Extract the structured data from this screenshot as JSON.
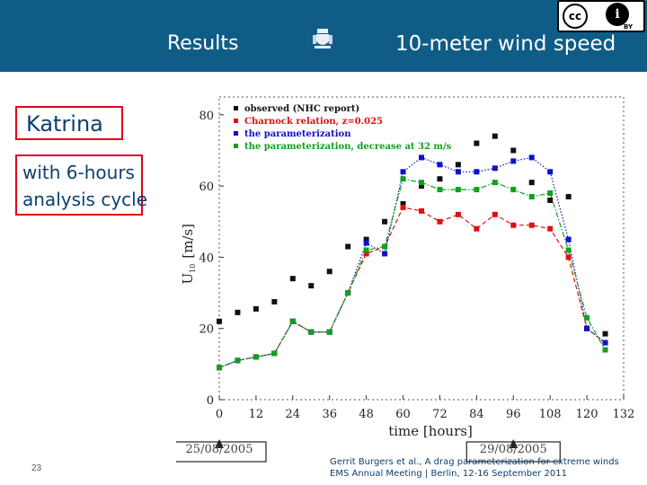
{
  "header": {
    "section": "Results",
    "title": "10-meter wind speed"
  },
  "sidebar": {
    "storm_name": "Katrina",
    "cycle_line1": "with 6-hours",
    "cycle_line2": "analysis cycle"
  },
  "footer": {
    "slide_number": "23",
    "credit_line1": "Gerrit Burgers et al., A drag parameterization for extreme winds",
    "credit_line2": "EMS Annual Meeting | Berlin, 12-16 September 2011"
  },
  "colors": {
    "header_bg": "#0f5d87",
    "box_border": "#e0001a",
    "text_blue": "#0f3f6e"
  },
  "icons": [
    "crest-icon",
    "cc-by-license-icon"
  ],
  "chart_data": {
    "type": "line",
    "xlabel": "time [hours]",
    "ylabel": "U",
    "ylabel_sub": "10",
    "ylabel_unit": "[m/s]",
    "xlim": [
      0,
      132
    ],
    "ylim": [
      0,
      85
    ],
    "xticks": [
      0,
      12,
      24,
      36,
      48,
      60,
      72,
      84,
      96,
      108,
      120,
      132
    ],
    "yticks": [
      0,
      20,
      40,
      60,
      80
    ],
    "legend_position": "top-left",
    "date_annotations": [
      {
        "label": "25/08/2005",
        "x": 0
      },
      {
        "label": "29/08/2005",
        "x": 96
      }
    ],
    "series": [
      {
        "name": "observed (NHC report)",
        "color": "#111111",
        "style": "markers",
        "points": [
          [
            0,
            22
          ],
          [
            6,
            24.5
          ],
          [
            12,
            25.5
          ],
          [
            18,
            27.5
          ],
          [
            24,
            34
          ],
          [
            30,
            32
          ],
          [
            36,
            36
          ],
          [
            42,
            43
          ],
          [
            48,
            45
          ],
          [
            54,
            50
          ],
          [
            60,
            55
          ],
          [
            66,
            60
          ],
          [
            72,
            62
          ],
          [
            78,
            66
          ],
          [
            84,
            72
          ],
          [
            90,
            74
          ],
          [
            96,
            70
          ],
          [
            102,
            61
          ],
          [
            108,
            56
          ],
          [
            114,
            57
          ],
          [
            120,
            20
          ],
          [
            126,
            18.5
          ]
        ]
      },
      {
        "name": "Charnock relation, z=0.025",
        "color": "#e01010",
        "style": "dashed-markers",
        "points": [
          [
            0,
            9
          ],
          [
            6,
            11
          ],
          [
            12,
            12
          ],
          [
            18,
            13
          ],
          [
            24,
            22
          ],
          [
            30,
            19
          ],
          [
            36,
            19
          ],
          [
            42,
            30
          ],
          [
            48,
            41
          ],
          [
            54,
            43
          ],
          [
            60,
            54
          ],
          [
            66,
            53
          ],
          [
            72,
            50
          ],
          [
            78,
            52
          ],
          [
            84,
            48
          ],
          [
            90,
            52
          ],
          [
            96,
            49
          ],
          [
            102,
            49
          ],
          [
            108,
            48
          ],
          [
            114,
            40
          ],
          [
            120,
            20
          ],
          [
            126,
            16
          ]
        ]
      },
      {
        "name": "the parameterization",
        "color": "#1010cc",
        "style": "dotted-markers",
        "points": [
          [
            0,
            9
          ],
          [
            6,
            11
          ],
          [
            12,
            12
          ],
          [
            18,
            13
          ],
          [
            24,
            22
          ],
          [
            30,
            19
          ],
          [
            36,
            19
          ],
          [
            42,
            30
          ],
          [
            48,
            44
          ],
          [
            54,
            41
          ],
          [
            60,
            64
          ],
          [
            66,
            68
          ],
          [
            72,
            66
          ],
          [
            78,
            64
          ],
          [
            84,
            64
          ],
          [
            90,
            65
          ],
          [
            96,
            67
          ],
          [
            102,
            68
          ],
          [
            108,
            64
          ],
          [
            114,
            45
          ],
          [
            120,
            20
          ],
          [
            126,
            16
          ]
        ]
      },
      {
        "name": "the parameterization, decrease at 32 m/s",
        "color": "#10a020",
        "style": "dashdot-markers",
        "points": [
          [
            0,
            9
          ],
          [
            6,
            11
          ],
          [
            12,
            12
          ],
          [
            18,
            13
          ],
          [
            24,
            22
          ],
          [
            30,
            19
          ],
          [
            36,
            19
          ],
          [
            42,
            30
          ],
          [
            48,
            42
          ],
          [
            54,
            43
          ],
          [
            60,
            62
          ],
          [
            66,
            61
          ],
          [
            72,
            59
          ],
          [
            78,
            59
          ],
          [
            84,
            59
          ],
          [
            90,
            61
          ],
          [
            96,
            59
          ],
          [
            102,
            57
          ],
          [
            108,
            58
          ],
          [
            114,
            42
          ],
          [
            120,
            23
          ],
          [
            126,
            14
          ]
        ]
      }
    ]
  }
}
